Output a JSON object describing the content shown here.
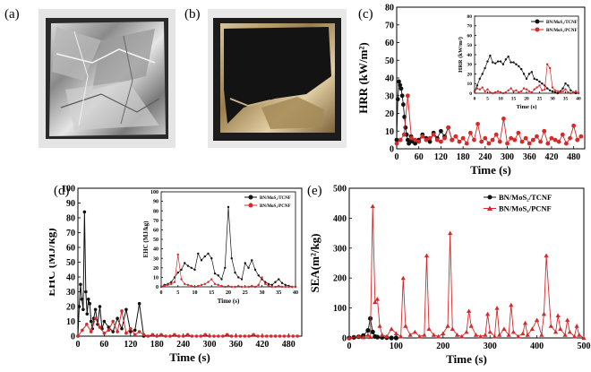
{
  "panel_labels": {
    "a": "(a)",
    "b": "(b)",
    "c": "(c)",
    "d": "(d)",
    "e": "(e)"
  },
  "colors": {
    "black_series": "#111111",
    "red_series": "#d42a2a"
  },
  "photos": {
    "a": {
      "description_icon": "foil-wrapped-residue-photo"
    },
    "b": {
      "description_icon": "charred-residue-photo"
    }
  },
  "chart_data": [
    {
      "id": "c",
      "type": "scatter",
      "ylabel": "HRR (kW/m²)",
      "xlabel": "Time (s)",
      "xlim": [
        0,
        510
      ],
      "ylim": [
        0,
        80
      ],
      "xticks": [
        0,
        60,
        120,
        180,
        240,
        300,
        360,
        420,
        480
      ],
      "yticks": [
        0,
        10,
        20,
        30,
        40,
        50,
        60,
        70,
        80
      ],
      "series": [
        {
          "name": "BN/MoS₂/TCNF",
          "x": [
            0,
            3,
            6,
            9,
            12,
            15,
            18,
            21,
            24,
            27,
            30,
            33,
            36,
            39,
            42,
            45,
            50,
            60,
            70,
            80,
            90,
            100,
            110,
            120,
            130,
            140,
            150
          ],
          "y": [
            5,
            28,
            38,
            36,
            34,
            30,
            25,
            18,
            12,
            8,
            5,
            3,
            4,
            7,
            5,
            4,
            3,
            5,
            8,
            6,
            4,
            9,
            6,
            10,
            7,
            12,
            5
          ]
        },
        {
          "name": "BN/MoS₂/PCNF",
          "x": [
            0,
            10,
            20,
            30,
            40,
            50,
            60,
            70,
            80,
            90,
            100,
            110,
            120,
            130,
            140,
            150,
            160,
            170,
            180,
            190,
            200,
            210,
            220,
            230,
            240,
            250,
            260,
            270,
            280,
            290,
            300,
            310,
            320,
            330,
            340,
            350,
            360,
            370,
            380,
            390,
            400,
            410,
            420,
            430,
            440,
            450,
            460,
            470,
            480,
            490,
            500
          ],
          "y": [
            3,
            5,
            8,
            30,
            6,
            5,
            4,
            7,
            5,
            6,
            8,
            5,
            4,
            6,
            12,
            5,
            7,
            4,
            6,
            3,
            9,
            5,
            14,
            4,
            6,
            3,
            5,
            8,
            4,
            17,
            3,
            6,
            5,
            9,
            4,
            6,
            3,
            5,
            7,
            4,
            10,
            3,
            6,
            5,
            4,
            8,
            3,
            6,
            13,
            5,
            7
          ]
        }
      ],
      "inset": {
        "ylabel": "HRR (kW/m²)",
        "xlabel": "Time (s)",
        "xlim": [
          0,
          40
        ],
        "ylim": [
          0,
          80
        ],
        "xticks": [
          0,
          5,
          10,
          15,
          20,
          25,
          30,
          35,
          40
        ],
        "yticks": [
          0,
          10,
          20,
          30,
          40,
          50,
          60,
          70,
          80
        ],
        "legend": [
          "BN/MoS₂/TCNF",
          "BN/MoS₂/PCNF"
        ],
        "series": [
          {
            "name": "BN/MoS₂/TCNF",
            "x": [
              0,
              1,
              2,
              3,
              4,
              5,
              6,
              7,
              8,
              9,
              10,
              11,
              12,
              13,
              14,
              15,
              16,
              17,
              18,
              19,
              20,
              21,
              22,
              23,
              24,
              25,
              26,
              27,
              28,
              29,
              30,
              31,
              32,
              33,
              34,
              35,
              36,
              37,
              38,
              39,
              40
            ],
            "y": [
              2,
              8,
              15,
              20,
              26,
              33,
              39,
              32,
              31,
              33,
              33,
              30,
              35,
              38,
              32,
              32,
              30,
              28,
              25,
              20,
              15,
              20,
              22,
              15,
              14,
              12,
              10,
              8,
              5,
              3,
              2,
              1,
              0,
              2,
              5,
              10,
              8,
              3,
              1,
              0,
              0
            ]
          },
          {
            "name": "BN/MoS₂/PCNF",
            "x": [
              0,
              1,
              2,
              3,
              4,
              5,
              6,
              7,
              8,
              9,
              10,
              11,
              12,
              13,
              14,
              15,
              16,
              17,
              18,
              19,
              20,
              21,
              22,
              23,
              24,
              25,
              26,
              27,
              28,
              29,
              30,
              31,
              32,
              33,
              34,
              35,
              36,
              37,
              38,
              39,
              40
            ],
            "y": [
              2,
              5,
              4,
              6,
              2,
              4,
              1,
              0,
              1,
              2,
              1,
              0,
              1,
              3,
              5,
              2,
              3,
              1,
              2,
              5,
              4,
              2,
              1,
              4,
              6,
              8,
              3,
              4,
              30,
              26,
              6,
              3,
              2,
              1,
              2,
              4,
              1,
              0,
              1,
              2,
              0
            ]
          }
        ]
      }
    },
    {
      "id": "d",
      "type": "line",
      "ylabel": "EHC (MJ/kg)",
      "xlabel": "Time (s)",
      "xlim": [
        0,
        510
      ],
      "ylim": [
        0,
        100
      ],
      "xticks": [
        0,
        60,
        120,
        180,
        240,
        300,
        360,
        420,
        480
      ],
      "yticks": [
        0,
        10,
        20,
        30,
        40,
        50,
        60,
        70,
        80,
        90,
        100
      ],
      "series": [
        {
          "name": "BN/MoS₂/TCNF",
          "x": [
            0,
            3,
            6,
            9,
            12,
            15,
            18,
            21,
            24,
            27,
            30,
            33,
            36,
            40,
            45,
            50,
            55,
            60,
            70,
            80,
            90,
            100,
            110,
            120,
            130,
            140,
            150
          ],
          "y": [
            0,
            20,
            35,
            25,
            18,
            84,
            30,
            15,
            25,
            22,
            10,
            5,
            12,
            18,
            8,
            20,
            5,
            10,
            6,
            3,
            12,
            5,
            18,
            3,
            4,
            22,
            0
          ]
        },
        {
          "name": "BN/MoS₂/PCNF",
          "x": [
            0,
            10,
            20,
            30,
            40,
            50,
            60,
            70,
            80,
            90,
            100,
            110,
            120,
            130,
            140,
            150,
            160,
            170,
            180,
            190,
            200,
            210,
            220,
            230,
            240,
            250,
            260,
            270,
            280,
            290,
            300,
            310,
            320,
            330,
            340,
            350,
            360,
            370,
            380,
            390,
            400,
            410,
            420,
            430,
            440,
            450,
            460,
            470,
            480,
            490,
            500
          ],
          "y": [
            0,
            4,
            8,
            3,
            12,
            6,
            2,
            4,
            10,
            3,
            17,
            2,
            5,
            1,
            3,
            1,
            0,
            1,
            0,
            1,
            0,
            0,
            1,
            0,
            0,
            1,
            0,
            0,
            0,
            1,
            0,
            0,
            0,
            0,
            1,
            0,
            0,
            0,
            0,
            0,
            1,
            0,
            0,
            0,
            0,
            0,
            0,
            0,
            0,
            0,
            0
          ]
        }
      ],
      "inset": {
        "ylabel": "EHC (MJ/kg)",
        "xlabel": "Time (s)",
        "xlim": [
          0,
          40
        ],
        "ylim": [
          0,
          100
        ],
        "xticks": [
          0,
          5,
          10,
          15,
          20,
          25,
          30,
          35,
          40
        ],
        "yticks": [
          0,
          10,
          20,
          30,
          40,
          50,
          60,
          70,
          80,
          90,
          100
        ],
        "legend": [
          "BN/MoS₂/TCNF",
          "BN/MoS₂/PCNF"
        ],
        "series": [
          {
            "name": "BN/MoS₂/TCNF",
            "x": [
              0,
              1,
              2,
              3,
              4,
              5,
              6,
              7,
              8,
              9,
              10,
              11,
              12,
              13,
              14,
              15,
              16,
              17,
              18,
              19,
              20,
              21,
              22,
              23,
              24,
              25,
              26,
              27,
              28,
              29,
              30,
              31,
              32,
              33,
              34,
              35,
              36,
              37,
              38,
              39,
              40
            ],
            "y": [
              0,
              2,
              3,
              5,
              10,
              15,
              18,
              25,
              22,
              20,
              18,
              35,
              28,
              32,
              35,
              30,
              14,
              12,
              8,
              20,
              84,
              30,
              15,
              10,
              8,
              25,
              20,
              28,
              18,
              12,
              8,
              5,
              3,
              2,
              5,
              8,
              4,
              2,
              1,
              0,
              0
            ]
          },
          {
            "name": "BN/MoS₂/PCNF",
            "x": [
              0,
              1,
              2,
              3,
              4,
              5,
              6,
              7,
              8,
              9,
              10,
              11,
              12,
              13,
              14,
              15,
              16,
              17,
              18,
              19,
              20,
              21,
              22,
              23,
              24,
              25,
              26,
              27,
              28,
              29,
              30,
              31,
              32,
              33,
              34,
              35,
              36,
              37,
              38,
              39,
              40
            ],
            "y": [
              0,
              1,
              2,
              3,
              5,
              34,
              8,
              3,
              2,
              1,
              0,
              1,
              2,
              3,
              5,
              8,
              3,
              2,
              1,
              0,
              1,
              0,
              0,
              1,
              0,
              0,
              0,
              1,
              0,
              2,
              10,
              3,
              1,
              0,
              0,
              1,
              0,
              0,
              0,
              0,
              0
            ]
          }
        ]
      }
    },
    {
      "id": "e",
      "type": "line",
      "ylabel": "SEA(m²/kg)",
      "xlabel": "Time (s)",
      "xlim": [
        0,
        500
      ],
      "ylim": [
        0,
        500
      ],
      "xticks": [
        0,
        100,
        200,
        300,
        400,
        500
      ],
      "yticks": [
        0,
        100,
        200,
        300,
        400,
        500
      ],
      "legend": [
        "BN/MoS₂/TCNF",
        "BN/MoS₂/PCNF"
      ],
      "series": [
        {
          "name": "BN/MoS₂/TCNF",
          "x": [
            0,
            10,
            20,
            30,
            40,
            45,
            50,
            55,
            60,
            70,
            80,
            90,
            100
          ],
          "y": [
            0,
            2,
            4,
            8,
            25,
            65,
            20,
            5,
            3,
            2,
            1,
            0,
            0
          ]
        },
        {
          "name": "BN/MoS₂/PCNF",
          "x": [
            0,
            20,
            30,
            40,
            45,
            50,
            55,
            60,
            65,
            70,
            80,
            90,
            100,
            110,
            115,
            120,
            130,
            140,
            150,
            160,
            165,
            170,
            180,
            190,
            200,
            210,
            215,
            220,
            230,
            240,
            250,
            255,
            260,
            270,
            280,
            290,
            295,
            300,
            310,
            315,
            320,
            330,
            340,
            345,
            350,
            360,
            370,
            375,
            380,
            390,
            400,
            410,
            415,
            420,
            430,
            440,
            445,
            450,
            460,
            465,
            470,
            480,
            485,
            490,
            500
          ],
          "y": [
            0,
            5,
            2,
            10,
            3,
            440,
            120,
            130,
            40,
            10,
            5,
            30,
            15,
            5,
            200,
            40,
            10,
            20,
            5,
            10,
            275,
            30,
            10,
            5,
            15,
            40,
            350,
            30,
            10,
            5,
            20,
            90,
            40,
            10,
            5,
            10,
            80,
            20,
            5,
            100,
            10,
            30,
            10,
            110,
            20,
            5,
            15,
            50,
            10,
            30,
            60,
            10,
            80,
            275,
            40,
            20,
            75,
            30,
            10,
            60,
            20,
            5,
            40,
            10,
            0
          ]
        }
      ]
    }
  ]
}
